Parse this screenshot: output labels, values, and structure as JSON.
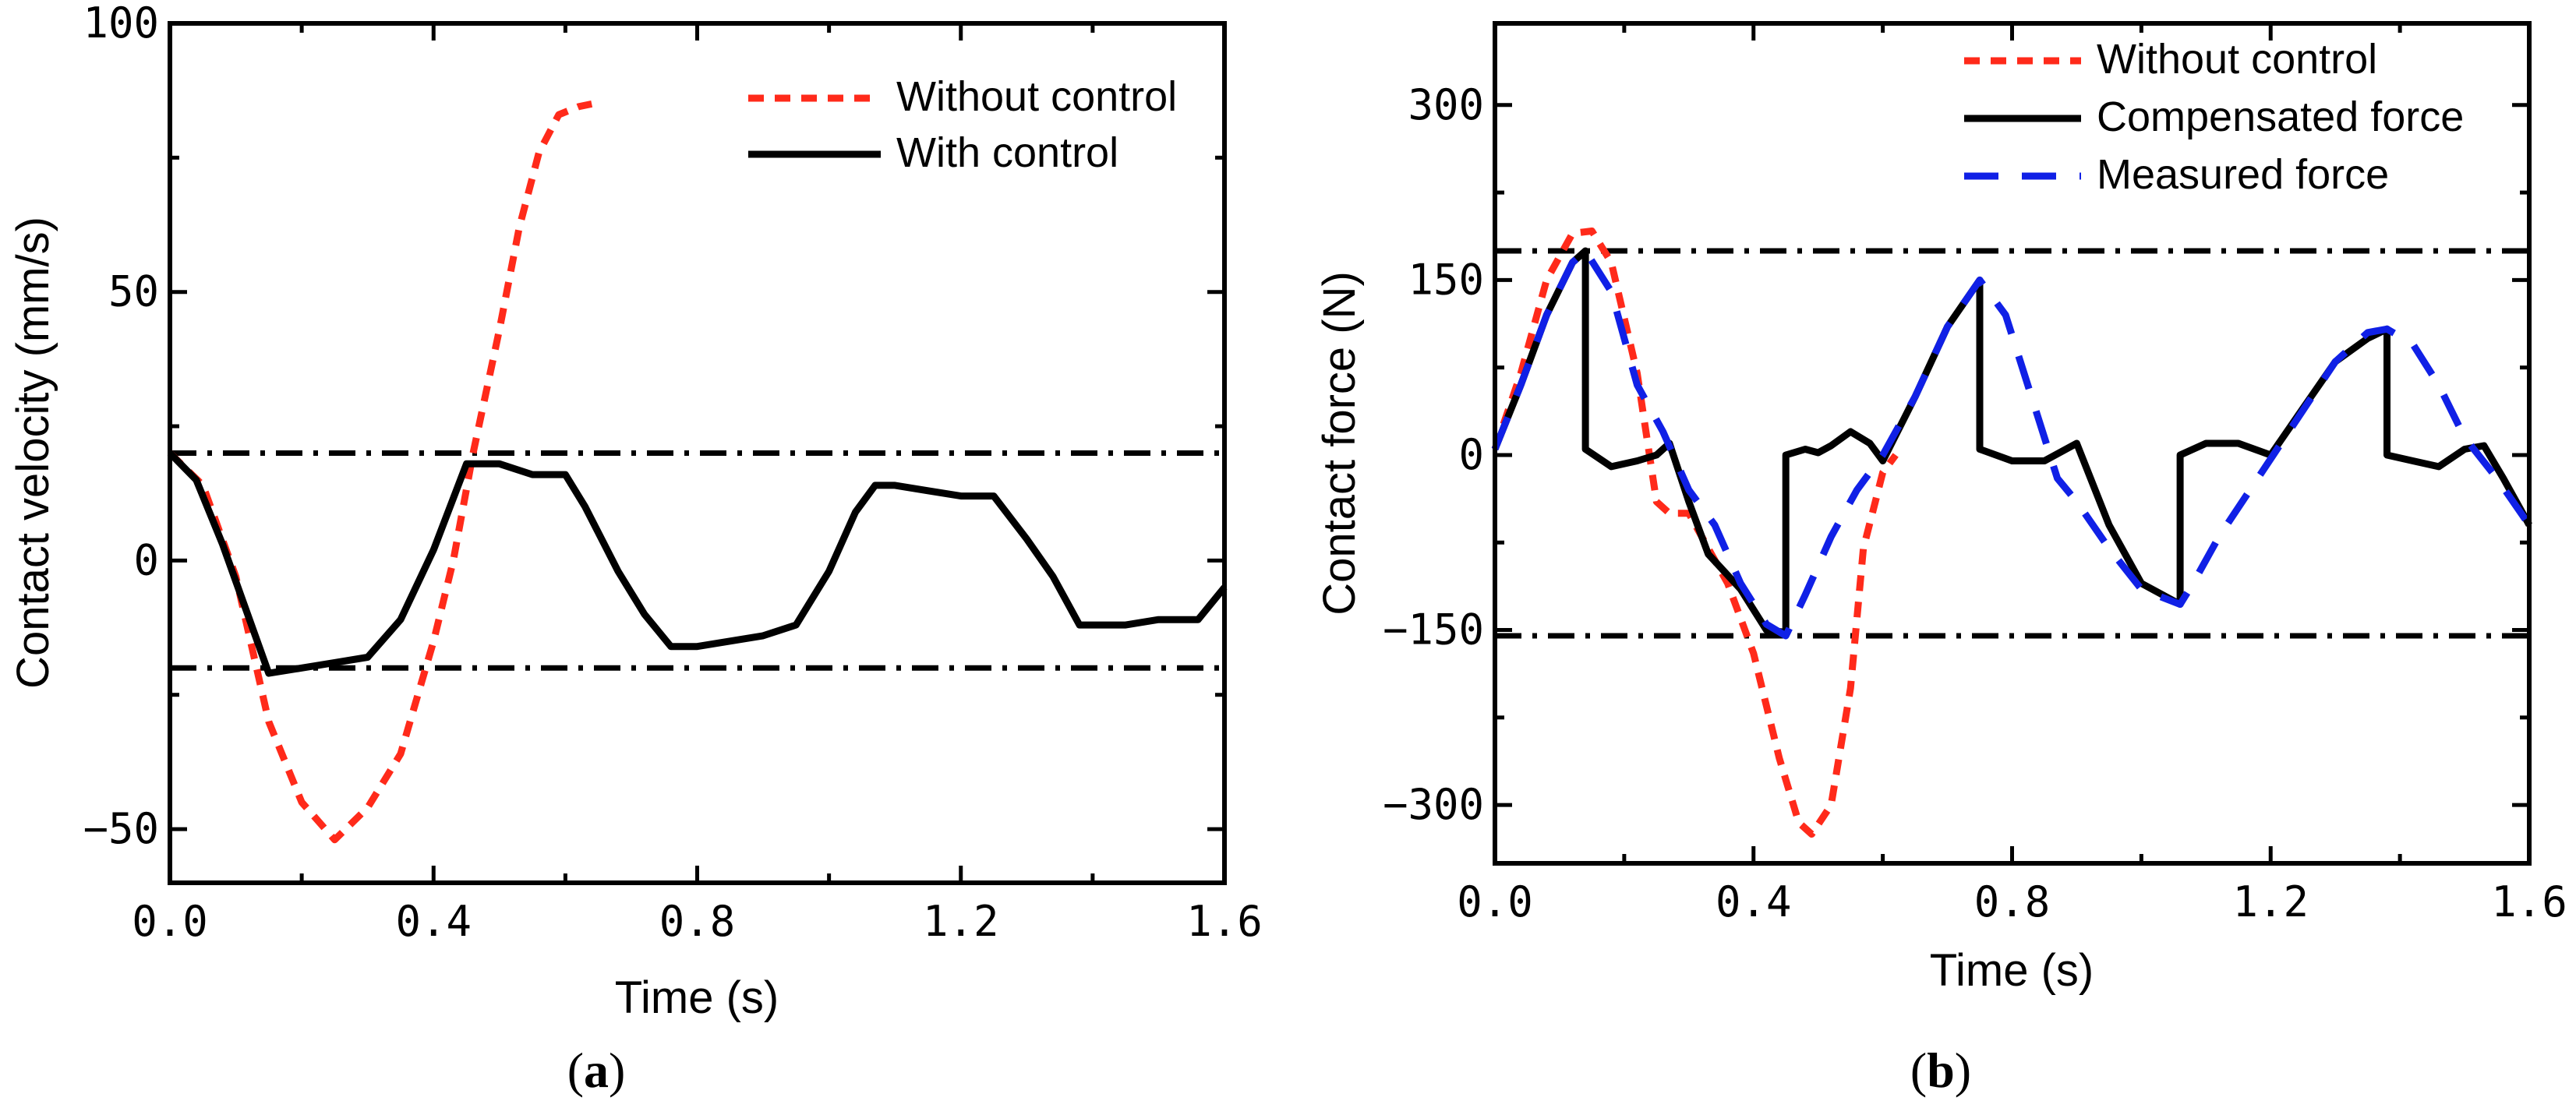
{
  "chart_data": [
    {
      "type": "line",
      "panel_label": [
        "(",
        "a",
        ")"
      ],
      "xlabel": "Time (s)",
      "ylabel": "Contact velocity (mm/s)",
      "xlim": [
        0,
        1.6
      ],
      "ylim": [
        -60,
        100
      ],
      "xticks": [
        0,
        0.4,
        0.8,
        1.2,
        1.6
      ],
      "xtick_labels": [
        "0.0",
        "0.4",
        "0.8",
        "1.2",
        "1.6"
      ],
      "yticks": [
        -50,
        0,
        50,
        100
      ],
      "ytick_labels": [
        "−50",
        "0",
        "50",
        "100"
      ],
      "legend_position": "top-right",
      "colors": {
        "without": "#ff2a1a",
        "with": "#000000"
      },
      "reference_lines": [
        {
          "name": "upper-bound",
          "y": 20
        },
        {
          "name": "lower-bound",
          "y": -20
        }
      ],
      "series": [
        {
          "name": "Without control",
          "style": "dashed",
          "x": [
            0,
            0.05,
            0.1,
            0.15,
            0.2,
            0.25,
            0.3,
            0.35,
            0.4,
            0.43,
            0.46,
            0.5,
            0.53,
            0.56,
            0.59,
            0.62,
            0.64
          ],
          "y": [
            20,
            14,
            -3,
            -30,
            -45,
            -52,
            -46,
            -36,
            -15,
            0,
            20,
            43,
            62,
            76,
            83,
            84.5,
            85
          ]
        },
        {
          "name": "With control",
          "style": "solid",
          "x": [
            0,
            0.04,
            0.08,
            0.15,
            0.2,
            0.25,
            0.3,
            0.35,
            0.4,
            0.45,
            0.5,
            0.55,
            0.6,
            0.63,
            0.68,
            0.72,
            0.76,
            0.8,
            0.85,
            0.9,
            0.95,
            1.0,
            1.04,
            1.07,
            1.1,
            1.15,
            1.2,
            1.25,
            1.3,
            1.34,
            1.38,
            1.45,
            1.5,
            1.52,
            1.56,
            1.6
          ],
          "y": [
            20,
            15,
            3,
            -21,
            -20,
            -19,
            -18,
            -11,
            2,
            18,
            18,
            16,
            16,
            10,
            -2,
            -10,
            -16,
            -16,
            -15,
            -14,
            -12,
            -2,
            9,
            14,
            14,
            13,
            12,
            12,
            4,
            -3,
            -12,
            -12,
            -11,
            -11,
            -11,
            -5
          ]
        }
      ]
    },
    {
      "type": "line",
      "panel_label": [
        "(",
        "b",
        ")"
      ],
      "xlabel": "Time (s)",
      "ylabel": "Contact force (N)",
      "xlim": [
        0,
        1.6
      ],
      "ylim": [
        -350,
        370
      ],
      "xticks": [
        0,
        0.4,
        0.8,
        1.2,
        1.6
      ],
      "xtick_labels": [
        "0.0",
        "0.4",
        "0.8",
        "1.2",
        "1.6"
      ],
      "yticks": [
        -300,
        -150,
        0,
        150,
        300
      ],
      "ytick_labels": [
        "−300",
        "−150",
        "0",
        "150",
        "300"
      ],
      "legend_position": "top-center",
      "colors": {
        "without": "#ff2a1a",
        "compensated": "#000000",
        "measured": "#1020e6"
      },
      "reference_lines": [
        {
          "name": "upper-bound",
          "y": 175
        },
        {
          "name": "lower-bound",
          "y": -155
        }
      ],
      "series": [
        {
          "name": "Without control",
          "style": "dashed",
          "x": [
            0,
            0.04,
            0.08,
            0.12,
            0.15,
            0.18,
            0.22,
            0.25,
            0.27,
            0.3,
            0.33,
            0.36,
            0.4,
            0.44,
            0.47,
            0.49,
            0.52,
            0.55,
            0.57,
            0.6,
            0.62
          ],
          "y": [
            5,
            70,
            150,
            190,
            192,
            165,
            70,
            -40,
            -50,
            -50,
            -80,
            -110,
            -170,
            -260,
            -315,
            -325,
            -300,
            -200,
            -80,
            -15,
            0
          ]
        },
        {
          "name": "Compensated force",
          "style": "solid",
          "x": [
            0,
            0.04,
            0.08,
            0.12,
            0.14,
            0.14,
            0.18,
            0.22,
            0.25,
            0.27,
            0.3,
            0.33,
            0.38,
            0.42,
            0.45,
            0.45,
            0.48,
            0.5,
            0.52,
            0.55,
            0.58,
            0.6,
            0.65,
            0.7,
            0.75,
            0.75,
            0.8,
            0.85,
            0.9,
            0.95,
            1.0,
            1.06,
            1.06,
            1.1,
            1.15,
            1.2,
            1.25,
            1.3,
            1.35,
            1.38,
            1.38,
            1.42,
            1.46,
            1.5,
            1.53,
            1.56,
            1.6
          ],
          "y": [
            5,
            60,
            120,
            165,
            175,
            5,
            -10,
            -5,
            0,
            10,
            -40,
            -85,
            -115,
            -150,
            -152,
            0,
            5,
            2,
            8,
            20,
            10,
            -5,
            50,
            110,
            150,
            5,
            -5,
            -5,
            10,
            -60,
            -110,
            -128,
            0,
            10,
            10,
            0,
            40,
            80,
            100,
            108,
            0,
            -5,
            -10,
            5,
            8,
            -20,
            -60
          ]
        },
        {
          "name": "Measured force",
          "style": "dashed",
          "x": [
            0,
            0.04,
            0.08,
            0.12,
            0.14,
            0.18,
            0.22,
            0.26,
            0.3,
            0.34,
            0.38,
            0.42,
            0.45,
            0.48,
            0.52,
            0.56,
            0.6,
            0.65,
            0.7,
            0.75,
            0.79,
            0.83,
            0.87,
            0.9,
            0.95,
            1.0,
            1.06,
            1.08,
            1.12,
            1.18,
            1.24,
            1.3,
            1.35,
            1.38,
            1.42,
            1.46,
            1.5,
            1.55,
            1.6
          ],
          "y": [
            5,
            60,
            120,
            165,
            175,
            140,
            60,
            20,
            -30,
            -60,
            -110,
            -145,
            -155,
            -120,
            -70,
            -30,
            0,
            50,
            110,
            150,
            120,
            50,
            -20,
            -40,
            -80,
            -115,
            -128,
            -110,
            -70,
            -20,
            30,
            80,
            105,
            108,
            95,
            60,
            15,
            -20,
            -60
          ]
        }
      ]
    }
  ]
}
